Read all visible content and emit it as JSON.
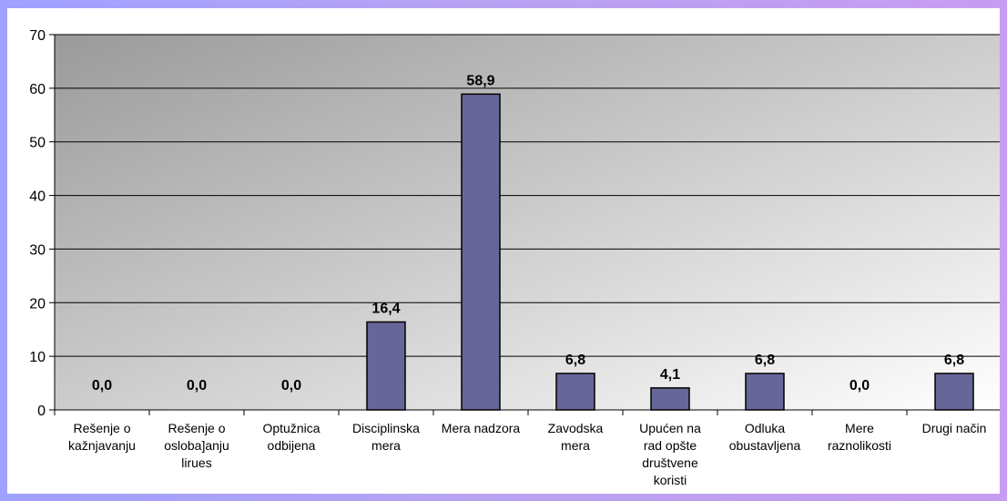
{
  "chart_data": {
    "type": "bar",
    "categories": [
      [
        "Rešenje o",
        "kažnjavanju"
      ],
      [
        "Rešenje o",
        "osloba]anju",
        "lirues"
      ],
      [
        "Optužnica",
        "odbijena"
      ],
      [
        "Disciplinska",
        "mera"
      ],
      [
        "Mera nadzora"
      ],
      [
        "Zavodska",
        "mera"
      ],
      [
        "Upućen na",
        "rad opšte",
        "društvene",
        "koristi"
      ],
      [
        "Odluka",
        "obustavljena"
      ],
      [
        "Mere",
        "raznolikosti"
      ],
      [
        "Drugi način"
      ]
    ],
    "values": [
      0.0,
      0.0,
      0.0,
      16.4,
      58.9,
      6.8,
      4.1,
      6.8,
      0.0,
      6.8
    ],
    "data_labels": [
      "0,0",
      "0,0",
      "0,0",
      "16,4",
      "58,9",
      "6,8",
      "4,1",
      "6,8",
      "0,0",
      "6,8"
    ],
    "ylim": [
      0,
      70
    ],
    "yticks": [
      0,
      10,
      20,
      30,
      40,
      50,
      60,
      70
    ],
    "grid": true,
    "bar_color": "#666699",
    "plot_bg_start": "#9a9a9a",
    "plot_bg_end": "#ffffff"
  }
}
